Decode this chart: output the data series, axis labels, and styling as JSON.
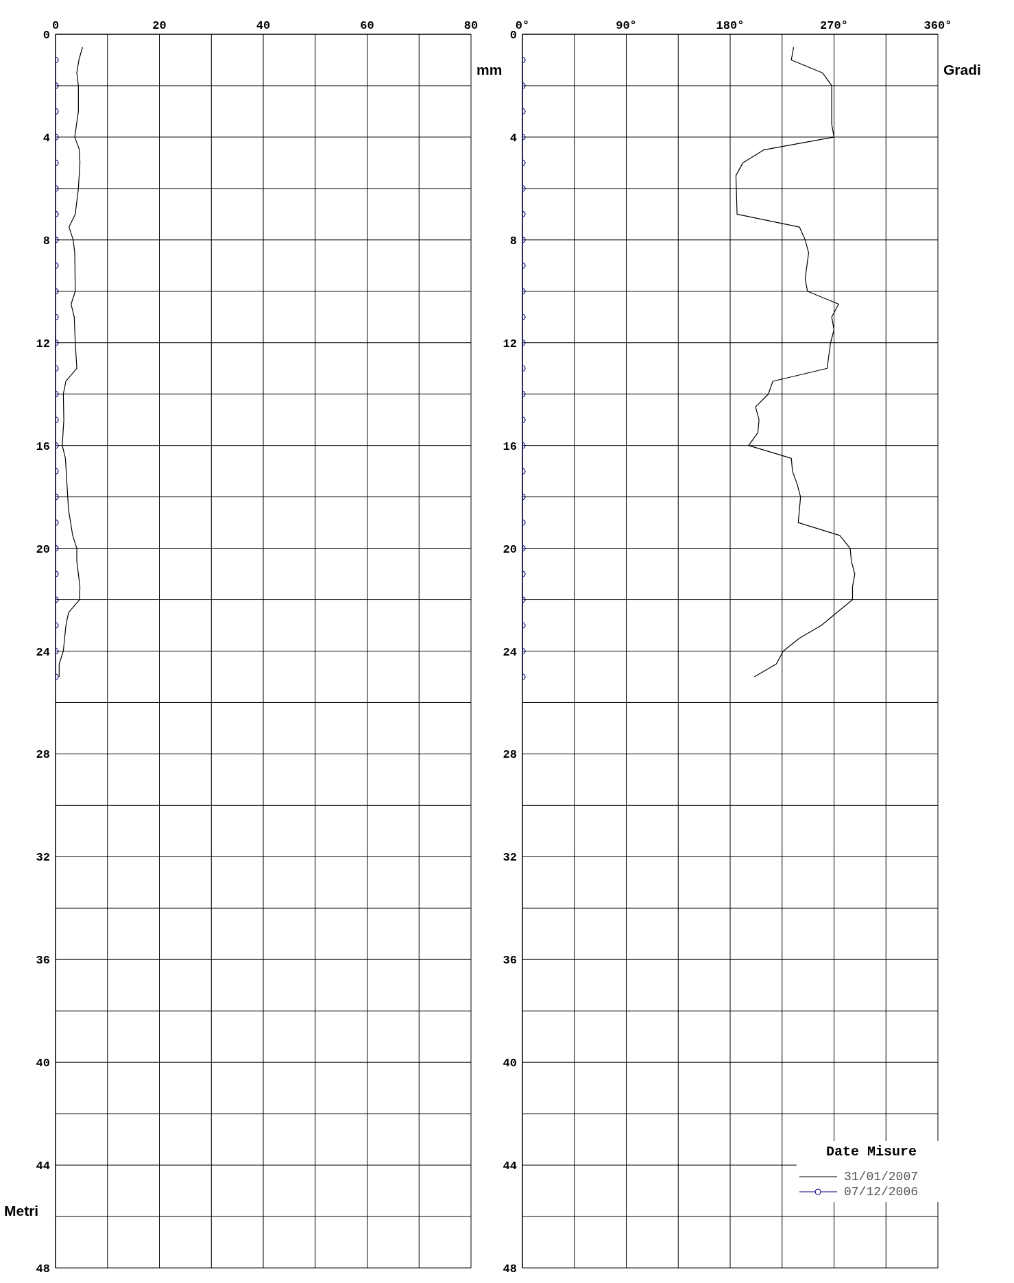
{
  "chart_data": [
    {
      "type": "line",
      "orientation": "horizontal",
      "xlabel": "mm",
      "ylabel": "Metri",
      "xlim": [
        0,
        80
      ],
      "xticks": [
        0,
        {
          "value": 10,
          "label": null
        },
        20,
        {
          "value": 30,
          "label": null
        },
        40,
        {
          "value": 50,
          "label": null
        },
        60,
        {
          "value": 70,
          "label": null
        },
        80
      ],
      "ylim": [
        48,
        0
      ],
      "yticks": [
        0,
        {
          "value": 2,
          "label": null
        },
        4,
        {
          "value": 6,
          "label": null
        },
        8,
        {
          "value": 10,
          "label": null
        },
        12,
        {
          "value": 14,
          "label": null
        },
        16,
        {
          "value": 18,
          "label": null
        },
        20,
        {
          "value": 22,
          "label": null
        },
        24,
        {
          "value": 26,
          "label": null
        },
        28,
        {
          "value": 30,
          "label": null
        },
        32,
        {
          "value": 34,
          "label": null
        },
        36,
        {
          "value": 38,
          "label": null
        },
        40,
        {
          "value": 42,
          "label": null
        },
        44,
        {
          "value": 46,
          "label": null
        },
        48
      ],
      "grid": true,
      "legend": false,
      "line_style": "solid",
      "series": [
        {
          "color": "#000000",
          "marker": "none",
          "x": [
            0.5,
            1,
            1.5,
            2,
            3,
            4,
            4.5,
            5,
            6,
            7,
            7.5,
            8,
            8.5,
            10,
            10.5,
            11,
            12,
            13,
            13.5,
            14,
            15,
            16,
            16.5,
            18.5,
            19.5,
            20,
            20.5,
            21.5,
            22,
            22.5,
            23,
            24,
            24.5,
            25
          ],
          "values": [
            5.2,
            4.5,
            4.1,
            4.4,
            4.4,
            3.7,
            4.6,
            4.7,
            4.4,
            3.8,
            2.6,
            3.4,
            3.7,
            3.8,
            3.0,
            3.6,
            3.8,
            4.1,
            2.0,
            1.5,
            1.6,
            1.3,
            1.9,
            2.5,
            3.3,
            4.1,
            4.1,
            4.7,
            4.6,
            2.5,
            2.0,
            1.5,
            0.7,
            0.7
          ]
        },
        {
          "color": "#000080",
          "marker": "circle",
          "x": [
            1,
            2,
            3,
            4,
            5,
            6,
            7,
            8,
            9,
            10,
            11,
            12,
            13,
            14,
            15,
            16,
            17,
            18,
            19,
            20,
            21,
            22,
            23,
            24,
            25
          ],
          "values": [
            0,
            0,
            0,
            0,
            0,
            0,
            0,
            0,
            0,
            0,
            0,
            0,
            0,
            0,
            0,
            0,
            0,
            0,
            0,
            0,
            0,
            0,
            0,
            0,
            0
          ]
        }
      ]
    },
    {
      "type": "line",
      "orientation": "horizontal",
      "xlabel": "Gradi",
      "legend_title": "Date Misure",
      "xlim": [
        0,
        360
      ],
      "xticks": [
        {
          "value": 0,
          "label": "0°"
        },
        {
          "value": 45,
          "label": null
        },
        {
          "value": 90,
          "label": "90°"
        },
        {
          "value": 135,
          "label": null
        },
        {
          "value": 180,
          "label": "180°"
        },
        {
          "value": 225,
          "label": null
        },
        {
          "value": 270,
          "label": "270°"
        },
        {
          "value": 315,
          "label": null
        },
        {
          "value": 360,
          "label": "360°"
        }
      ],
      "ylim": [
        48,
        0
      ],
      "yticks": [
        0,
        {
          "value": 2,
          "label": null
        },
        4,
        {
          "value": 6,
          "label": null
        },
        8,
        {
          "value": 10,
          "label": null
        },
        12,
        {
          "value": 14,
          "label": null
        },
        16,
        {
          "value": 18,
          "label": null
        },
        20,
        {
          "value": 22,
          "label": null
        },
        24,
        {
          "value": 26,
          "label": null
        },
        28,
        {
          "value": 30,
          "label": null
        },
        32,
        {
          "value": 34,
          "label": null
        },
        36,
        {
          "value": 38,
          "label": null
        },
        40,
        {
          "value": 42,
          "label": null
        },
        44,
        {
          "value": 46,
          "label": null
        },
        48
      ],
      "grid": true,
      "legend": "bottom right",
      "line_style": "solid",
      "series": [
        {
          "name": "31/01/2007",
          "color": "#000000",
          "marker": "none",
          "x": [
            0.5,
            1,
            1.5,
            2,
            3.5,
            4,
            4.5,
            5,
            5.5,
            7,
            7.5,
            8,
            8.5,
            9.5,
            10,
            10.5,
            11,
            11.5,
            12,
            13,
            13.5,
            14,
            14.5,
            15,
            15.5,
            16,
            16.5,
            17,
            17.5,
            18,
            19,
            19.5,
            20,
            20.5,
            21,
            21.5,
            22,
            23,
            23.5,
            24,
            24.5,
            25
          ],
          "values": [
            235,
            233,
            260,
            268,
            268,
            270,
            209,
            191,
            185,
            186,
            240,
            245,
            248,
            245,
            247,
            274,
            268,
            270,
            267,
            264,
            217,
            213,
            202,
            205,
            204,
            196,
            233,
            234,
            238,
            241,
            239,
            275,
            284,
            285,
            288,
            286,
            286,
            259,
            240,
            226,
            220,
            201
          ]
        },
        {
          "name": "07/12/2006",
          "color": "#000080",
          "marker": "circle",
          "x": [
            1,
            2,
            3,
            4,
            5,
            6,
            7,
            8,
            9,
            10,
            11,
            12,
            13,
            14,
            15,
            16,
            17,
            18,
            19,
            20,
            21,
            22,
            23,
            24,
            25
          ],
          "values": [
            0,
            0,
            0,
            0,
            0,
            0,
            0,
            0,
            0,
            0,
            0,
            0,
            0,
            0,
            0,
            0,
            0,
            0,
            0,
            0,
            0,
            0,
            0,
            0,
            0
          ]
        }
      ]
    }
  ]
}
